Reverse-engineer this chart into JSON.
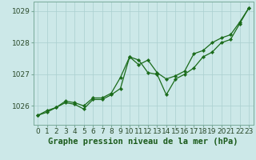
{
  "title": "",
  "xlabel": "Graphe pression niveau de la mer (hPa)",
  "ylabel": "",
  "background_color": "#cce8e8",
  "plot_background": "#cce8e8",
  "line_color": "#1a6b1a",
  "grid_color": "#aacfcf",
  "ylim": [
    1025.4,
    1029.3
  ],
  "xlim": [
    -0.5,
    23.5
  ],
  "yticks": [
    1026,
    1027,
    1028,
    1029
  ],
  "xticks": [
    0,
    1,
    2,
    3,
    4,
    5,
    6,
    7,
    8,
    9,
    10,
    11,
    12,
    13,
    14,
    15,
    16,
    17,
    18,
    19,
    20,
    21,
    22,
    23
  ],
  "series1": [
    1025.7,
    1025.8,
    1025.95,
    1026.1,
    1026.05,
    1025.9,
    1026.2,
    1026.2,
    1026.35,
    1026.55,
    1027.55,
    1027.45,
    1027.05,
    1027.0,
    1026.35,
    1026.85,
    1027.0,
    1027.2,
    1027.55,
    1027.7,
    1028.0,
    1028.1,
    1028.6,
    1029.1
  ],
  "series2": [
    1025.7,
    1025.85,
    1025.95,
    1026.15,
    1026.1,
    1026.0,
    1026.25,
    1026.25,
    1026.4,
    1026.9,
    1027.55,
    1027.3,
    1027.45,
    1027.05,
    1026.85,
    1026.95,
    1027.1,
    1027.65,
    1027.75,
    1028.0,
    1028.15,
    1028.25,
    1028.65,
    1029.1
  ],
  "tick_fontsize": 6.5,
  "label_fontsize": 7.5
}
